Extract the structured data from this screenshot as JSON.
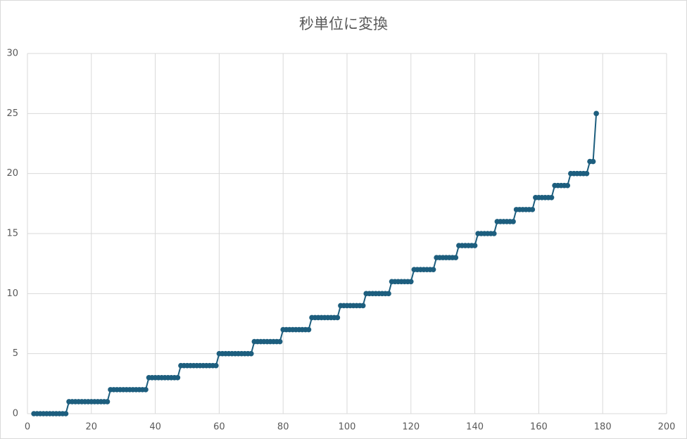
{
  "chart_data": {
    "type": "line",
    "title": "秒単位に変換",
    "x": [
      2,
      3,
      4,
      5,
      6,
      7,
      8,
      9,
      10,
      11,
      12,
      13,
      14,
      15,
      16,
      17,
      18,
      19,
      20,
      21,
      22,
      23,
      24,
      25,
      26,
      27,
      28,
      29,
      30,
      31,
      32,
      33,
      34,
      35,
      36,
      37,
      38,
      39,
      40,
      41,
      42,
      43,
      44,
      45,
      46,
      47,
      48,
      49,
      50,
      51,
      52,
      53,
      54,
      55,
      56,
      57,
      58,
      59,
      60,
      61,
      62,
      63,
      64,
      65,
      66,
      67,
      68,
      69,
      70,
      71,
      72,
      73,
      74,
      75,
      76,
      77,
      78,
      79,
      80,
      81,
      82,
      83,
      84,
      85,
      86,
      87,
      88,
      89,
      90,
      91,
      92,
      93,
      94,
      95,
      96,
      97,
      98,
      99,
      100,
      101,
      102,
      103,
      104,
      105,
      106,
      107,
      108,
      109,
      110,
      111,
      112,
      113,
      114,
      115,
      116,
      117,
      118,
      119,
      120,
      121,
      122,
      123,
      124,
      125,
      126,
      127,
      128,
      129,
      130,
      131,
      132,
      133,
      134,
      135,
      136,
      137,
      138,
      139,
      140,
      141,
      142,
      143,
      144,
      145,
      146,
      147,
      148,
      149,
      150,
      151,
      152,
      153,
      154,
      155,
      156,
      157,
      158,
      159,
      160,
      161,
      162,
      163,
      164,
      165,
      166,
      167,
      168,
      169,
      170,
      171,
      172,
      173,
      174,
      175,
      176,
      177,
      178
    ],
    "series": [
      {
        "color": "#1d5e7e",
        "values": [
          0,
          0,
          0,
          0,
          0,
          0,
          0,
          0,
          0,
          0,
          0,
          1,
          1,
          1,
          1,
          1,
          1,
          1,
          1,
          1,
          1,
          1,
          1,
          1,
          2,
          2,
          2,
          2,
          2,
          2,
          2,
          2,
          2,
          2,
          2,
          2,
          3,
          3,
          3,
          3,
          3,
          3,
          3,
          3,
          3,
          3,
          4,
          4,
          4,
          4,
          4,
          4,
          4,
          4,
          4,
          4,
          4,
          4,
          5,
          5,
          5,
          5,
          5,
          5,
          5,
          5,
          5,
          5,
          5,
          6,
          6,
          6,
          6,
          6,
          6,
          6,
          6,
          6,
          7,
          7,
          7,
          7,
          7,
          7,
          7,
          7,
          7,
          8,
          8,
          8,
          8,
          8,
          8,
          8,
          8,
          8,
          9,
          9,
          9,
          9,
          9,
          9,
          9,
          9,
          10,
          10,
          10,
          10,
          10,
          10,
          10,
          10,
          11,
          11,
          11,
          11,
          11,
          11,
          11,
          12,
          12,
          12,
          12,
          12,
          12,
          12,
          13,
          13,
          13,
          13,
          13,
          13,
          13,
          14,
          14,
          14,
          14,
          14,
          14,
          15,
          15,
          15,
          15,
          15,
          15,
          16,
          16,
          16,
          16,
          16,
          16,
          17,
          17,
          17,
          17,
          17,
          17,
          18,
          18,
          18,
          18,
          18,
          18,
          19,
          19,
          19,
          19,
          19,
          20,
          20,
          20,
          20,
          20,
          20,
          21,
          21,
          25
        ]
      }
    ],
    "xlim": [
      0,
      200
    ],
    "xticks": [
      0,
      20,
      40,
      60,
      80,
      100,
      120,
      140,
      160,
      180,
      200
    ],
    "ylim": [
      0,
      30
    ],
    "yticks": [
      0,
      5,
      10,
      15,
      20,
      25,
      30
    ],
    "grid": true
  }
}
